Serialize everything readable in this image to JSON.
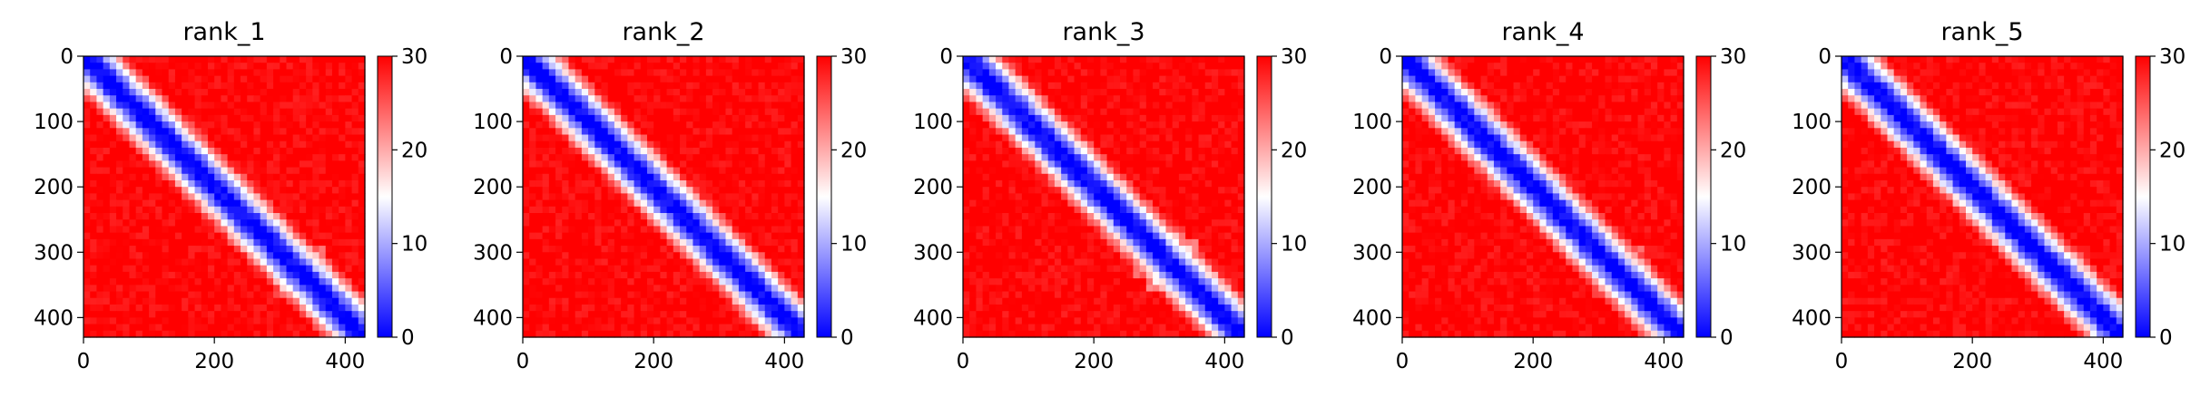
{
  "chart_data": [
    {
      "type": "heatmap",
      "title": "rank_1",
      "xlim": [
        0,
        430
      ],
      "ylim": [
        430,
        0
      ],
      "x_ticks": [
        0,
        200,
        400
      ],
      "y_ticks": [
        0,
        100,
        200,
        300,
        400
      ],
      "color_range": [
        0,
        30
      ],
      "colorbar_ticks": [
        0,
        10,
        20,
        30
      ],
      "colormap": [
        "#0000ff",
        "#ffffff",
        "#ff0000"
      ],
      "low_distance_blocks": [
        {
          "center": 25,
          "size": 45
        },
        {
          "center": 200,
          "size": 22
        },
        {
          "center": 235,
          "size": 25
        },
        {
          "center": 300,
          "size": 30
        },
        {
          "center": 330,
          "size": 40
        }
      ],
      "background_value": 30
    },
    {
      "type": "heatmap",
      "title": "rank_2",
      "xlim": [
        0,
        430
      ],
      "ylim": [
        430,
        0
      ],
      "x_ticks": [
        0,
        200,
        400
      ],
      "y_ticks": [
        0,
        100,
        200,
        300,
        400
      ],
      "color_range": [
        0,
        30
      ],
      "colorbar_ticks": [
        0,
        10,
        20,
        30
      ],
      "colormap": [
        "#0000ff",
        "#ffffff",
        "#ff0000"
      ],
      "low_distance_blocks": [
        {
          "center": 25,
          "size": 45
        },
        {
          "center": 130,
          "size": 20
        },
        {
          "center": 210,
          "size": 25
        },
        {
          "center": 300,
          "size": 30
        },
        {
          "center": 330,
          "size": 35
        }
      ],
      "background_value": 30
    },
    {
      "type": "heatmap",
      "title": "rank_3",
      "xlim": [
        0,
        430
      ],
      "ylim": [
        430,
        0
      ],
      "x_ticks": [
        0,
        200,
        400
      ],
      "y_ticks": [
        0,
        100,
        200,
        300,
        400
      ],
      "color_range": [
        0,
        30
      ],
      "colorbar_ticks": [
        0,
        10,
        20,
        30
      ],
      "colormap": [
        "#0000ff",
        "#ffffff",
        "#ff0000"
      ],
      "low_distance_blocks": [
        {
          "center": 25,
          "size": 40
        },
        {
          "center": 180,
          "size": 35
        },
        {
          "center": 240,
          "size": 25
        },
        {
          "center": 300,
          "size": 40
        },
        {
          "center": 320,
          "size": 45
        }
      ],
      "background_value": 30
    },
    {
      "type": "heatmap",
      "title": "rank_4",
      "xlim": [
        0,
        430
      ],
      "ylim": [
        430,
        0
      ],
      "x_ticks": [
        0,
        200,
        400
      ],
      "y_ticks": [
        0,
        100,
        200,
        300,
        400
      ],
      "color_range": [
        0,
        30
      ],
      "colorbar_ticks": [
        0,
        10,
        20,
        30
      ],
      "colormap": [
        "#0000ff",
        "#ffffff",
        "#ff0000"
      ],
      "low_distance_blocks": [
        {
          "center": 25,
          "size": 45
        },
        {
          "center": 170,
          "size": 22
        },
        {
          "center": 230,
          "size": 25
        },
        {
          "center": 290,
          "size": 30
        },
        {
          "center": 330,
          "size": 40
        }
      ],
      "background_value": 30
    },
    {
      "type": "heatmap",
      "title": "rank_5",
      "xlim": [
        0,
        430
      ],
      "ylim": [
        430,
        0
      ],
      "x_ticks": [
        0,
        200,
        400
      ],
      "y_ticks": [
        0,
        100,
        200,
        300,
        400
      ],
      "color_range": [
        0,
        30
      ],
      "colorbar_ticks": [
        0,
        10,
        20,
        30
      ],
      "colormap": [
        "#0000ff",
        "#ffffff",
        "#ff0000"
      ],
      "low_distance_blocks": [
        {
          "center": 25,
          "size": 45
        },
        {
          "center": 140,
          "size": 20
        },
        {
          "center": 210,
          "size": 25
        },
        {
          "center": 290,
          "size": 30
        },
        {
          "center": 330,
          "size": 35
        }
      ],
      "background_value": 30
    }
  ]
}
